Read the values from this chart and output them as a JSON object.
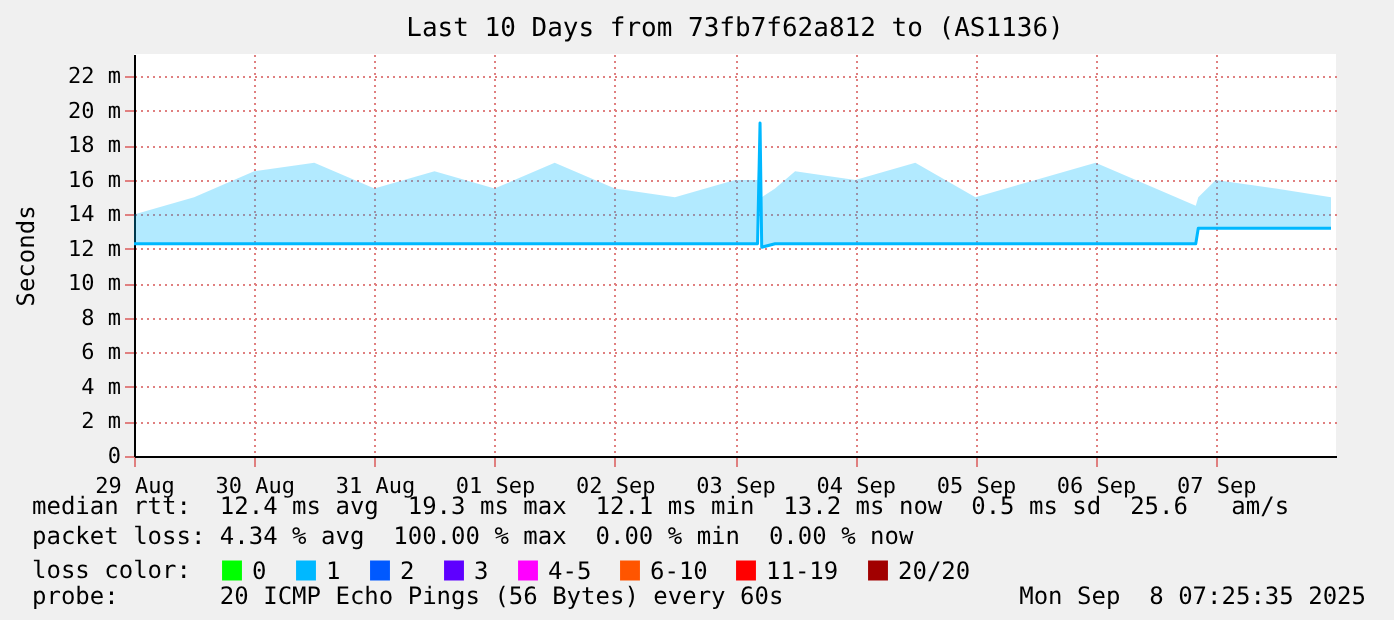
{
  "chart_data": {
    "type": "line",
    "title": "Last 10 Days from 73fb7f62a812 to (AS1136)",
    "ylabel": "Seconds",
    "legend_title": "loss color:",
    "legend": "bottom",
    "grid": true,
    "marker": "none",
    "line_style": "solid",
    "xlim": [
      "2025-08-29",
      "2025-09-08"
    ],
    "xticks": [
      {
        "value": "2025-08-29",
        "label": "29 Aug"
      },
      {
        "value": "2025-08-30",
        "label": "30 Aug"
      },
      {
        "value": "2025-08-31",
        "label": "31 Aug"
      },
      {
        "value": "2025-09-01",
        "label": "01 Sep"
      },
      {
        "value": "2025-09-02",
        "label": "02 Sep"
      },
      {
        "value": "2025-09-03",
        "label": "03 Sep"
      },
      {
        "value": "2025-09-04",
        "label": "04 Sep"
      },
      {
        "value": "2025-09-05",
        "label": "05 Sep"
      },
      {
        "value": "2025-09-06",
        "label": "06 Sep"
      },
      {
        "value": "2025-09-07",
        "label": "07 Sep"
      }
    ],
    "ylim": [
      0,
      23.3
    ],
    "yticks": [
      0,
      {
        "value": 2,
        "label": "2 m"
      },
      {
        "value": 4,
        "label": "4 m"
      },
      {
        "value": 6,
        "label": "6 m"
      },
      {
        "value": 8,
        "label": "8 m"
      },
      {
        "value": 10,
        "label": "10 m"
      },
      {
        "value": 12,
        "label": "12 m"
      },
      {
        "value": 14,
        "label": "14 m"
      },
      {
        "value": 16,
        "label": "16 m"
      },
      {
        "value": 18,
        "label": "18 m"
      },
      {
        "value": 20,
        "label": "20 m"
      },
      {
        "value": 22,
        "label": "22 m"
      }
    ],
    "x": [
      "2025-08-29T00:00",
      "2025-08-29T12:00",
      "2025-08-30T00:00",
      "2025-08-30T12:00",
      "2025-08-31T00:00",
      "2025-08-31T12:00",
      "2025-09-01T00:00",
      "2025-09-01T12:00",
      "2025-09-02T00:00",
      "2025-09-02T12:00",
      "2025-09-03T00:00",
      "2025-09-03T04:30",
      "2025-09-03T05:00",
      "2025-09-03T05:20",
      "2025-09-03T08:00",
      "2025-09-03T12:00",
      "2025-09-04T00:00",
      "2025-09-04T12:00",
      "2025-09-05T00:00",
      "2025-09-05T12:00",
      "2025-09-06T00:00",
      "2025-09-06T12:00",
      "2025-09-06T20:00",
      "2025-09-06T20:30",
      "2025-09-07T00:00",
      "2025-09-07T12:00",
      "2025-09-07T23:00"
    ],
    "series": [
      {
        "color": "#00b8ff",
        "values": [
          12.3,
          12.3,
          12.3,
          12.3,
          12.3,
          12.3,
          12.3,
          12.3,
          12.3,
          12.3,
          12.3,
          12.3,
          19.3,
          12.1,
          12.3,
          12.3,
          12.3,
          12.3,
          12.3,
          12.3,
          12.3,
          12.3,
          12.3,
          13.2,
          13.2,
          13.2,
          13.2
        ],
        "lower": [
          12.3,
          12.3,
          12.3,
          12.3,
          12.3,
          12.3,
          12.3,
          12.3,
          12.3,
          12.3,
          12.3,
          12.3,
          19.3,
          12.1,
          12.3,
          12.3,
          12.3,
          12.3,
          12.3,
          12.3,
          12.3,
          12.3,
          12.3,
          13.2,
          13.2,
          13.2,
          13.2
        ],
        "upper": [
          14,
          15,
          16.5,
          17,
          15.5,
          16.5,
          15.5,
          17,
          15.5,
          15,
          16,
          16,
          19.3,
          15,
          15.5,
          16.5,
          16,
          17,
          15,
          16,
          17,
          15.5,
          14.5,
          15,
          16,
          15.5,
          15
        ]
      },
      {
        "name": "0",
        "color": "#00ff00",
        "values": [
          null,
          null,
          null,
          null,
          null,
          null,
          null,
          null,
          null,
          null,
          null,
          null,
          null,
          null,
          null,
          null,
          null,
          null,
          null,
          null,
          null,
          null,
          null,
          null,
          null,
          null,
          null
        ]
      },
      {
        "name": "1",
        "color": "#00b8ff",
        "values": [
          null,
          null,
          null,
          null,
          null,
          null,
          null,
          null,
          null,
          null,
          null,
          null,
          null,
          null,
          null,
          null,
          null,
          null,
          null,
          null,
          null,
          null,
          null,
          null,
          null,
          null,
          null
        ]
      },
      {
        "name": "2",
        "color": "#0059ff",
        "values": [
          null,
          null,
          null,
          null,
          null,
          null,
          null,
          null,
          null,
          null,
          null,
          null,
          null,
          null,
          null,
          null,
          null,
          null,
          null,
          null,
          null,
          null,
          null,
          null,
          null,
          null,
          null
        ]
      },
      {
        "name": "3",
        "color": "#5e00ff",
        "values": [
          null,
          null,
          null,
          null,
          null,
          null,
          null,
          null,
          null,
          null,
          null,
          null,
          null,
          null,
          null,
          null,
          null,
          null,
          null,
          null,
          null,
          null,
          null,
          null,
          null,
          null,
          null
        ]
      },
      {
        "name": "4-5",
        "color": "#ff00ff",
        "values": [
          null,
          null,
          null,
          null,
          null,
          null,
          null,
          null,
          null,
          null,
          null,
          null,
          null,
          null,
          null,
          null,
          null,
          null,
          null,
          null,
          null,
          null,
          null,
          null,
          null,
          null,
          null
        ]
      },
      {
        "name": "6-10",
        "color": "#ff5500",
        "values": [
          null,
          null,
          null,
          null,
          null,
          null,
          null,
          null,
          null,
          null,
          null,
          null,
          null,
          null,
          null,
          null,
          null,
          null,
          null,
          null,
          null,
          null,
          null,
          null,
          null,
          null,
          null
        ]
      },
      {
        "name": "11-19",
        "color": "#ff0000",
        "values": [
          null,
          null,
          null,
          null,
          null,
          null,
          null,
          null,
          null,
          null,
          null,
          null,
          null,
          null,
          null,
          null,
          null,
          null,
          null,
          null,
          null,
          null,
          null,
          null,
          null,
          null,
          null
        ]
      },
      {
        "name": "20/20",
        "color": "#a10000",
        "values": [
          null,
          null,
          null,
          null,
          null,
          null,
          null,
          null,
          null,
          null,
          null,
          null,
          null,
          null,
          null,
          null,
          null,
          null,
          null,
          null,
          null,
          null,
          null,
          null,
          null,
          null,
          null
        ]
      }
    ],
    "annotations": [
      "median rtt:  12.4 ms avg  19.3 ms max  12.1 ms min  13.2 ms now  0.5 ms sd  25.6   am/s",
      "packet loss: 4.34 % avg  100.00 % max  0.00 % min  0.00 % now",
      "probe:       20 ICMP Echo Pings (56 Bytes) every 60s",
      "Mon Sep  8 07:25:35 2025"
    ]
  }
}
